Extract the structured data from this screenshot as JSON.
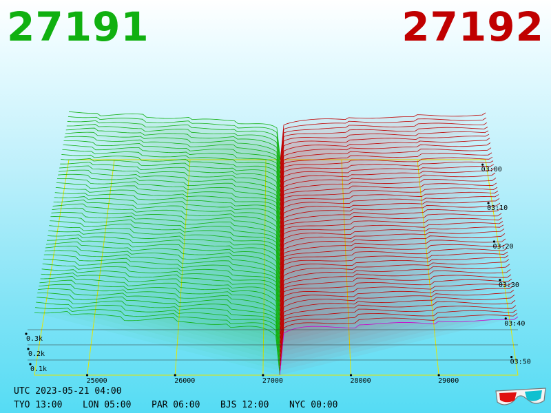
{
  "header": {
    "bid_price": "27191",
    "ask_price": "27192"
  },
  "colors": {
    "bid": "#10b010",
    "ask": "#c00000",
    "latest_ask_trace": "#cc00cc",
    "grid": "#e6e600"
  },
  "chart_data": {
    "type": "3d-depth",
    "x_axis": {
      "tick_labels": [
        "25000",
        "26000",
        "27000",
        "28000",
        "29000"
      ],
      "values": [
        25000,
        26000,
        27000,
        28000,
        29000
      ],
      "range": [
        24400,
        29900
      ]
    },
    "y_axis": {
      "tick_labels": [
        "0.1k",
        "0.2k",
        "0.3k"
      ],
      "values": [
        100,
        200,
        300
      ]
    },
    "time_axis": {
      "tick_labels": [
        "03:00",
        "03:10",
        "03:20",
        "03:30",
        "03:40",
        "03:50"
      ]
    },
    "mid_price": 27191.5,
    "snapshots": 48
  },
  "clocks": {
    "utc": "UTC 2023-05-21 04:00",
    "cities": [
      {
        "label": "TYO 13:00"
      },
      {
        "label": "LON 05:00"
      },
      {
        "label": "PAR 06:00"
      },
      {
        "label": "BJS 12:00"
      },
      {
        "label": "NYC 00:00"
      }
    ]
  },
  "icons": {
    "glasses": "3d-glasses-icon"
  }
}
